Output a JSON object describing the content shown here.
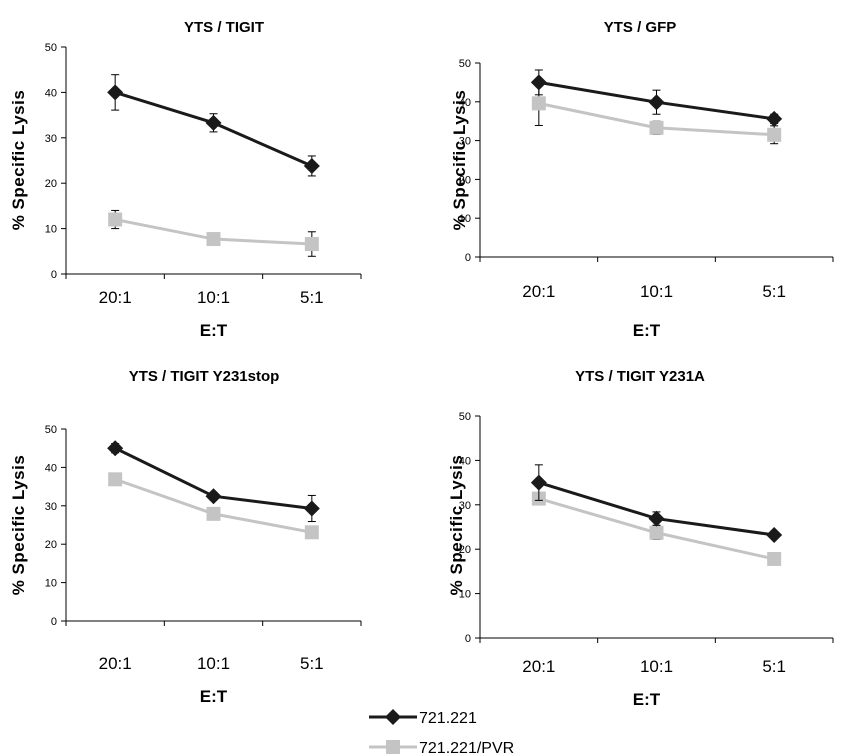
{
  "chart_data": [
    {
      "type": "line",
      "title": "YTS / TIGIT",
      "xlabel": "E:T",
      "ylabel": "% Specific Lysis",
      "categories": [
        "20:1",
        "10:1",
        "5:1"
      ],
      "ylim": [
        0,
        50
      ],
      "yticks": [
        0,
        10,
        20,
        30,
        40,
        50
      ],
      "series": [
        {
          "name": "721.221",
          "values": [
            40,
            33.3,
            23.8
          ],
          "errors": [
            3.9,
            2.0,
            2.2
          ]
        },
        {
          "name": "721.221/PVR",
          "values": [
            12,
            7.7,
            6.6
          ],
          "errors": [
            2.0,
            0.7,
            2.7
          ]
        }
      ]
    },
    {
      "type": "line",
      "title": "YTS / GFP",
      "xlabel": "E:T",
      "ylabel": "% Specific Lysis",
      "categories": [
        "20:1",
        "10:1",
        "5:1"
      ],
      "ylim": [
        0,
        50
      ],
      "yticks": [
        0,
        10,
        20,
        30,
        40,
        50
      ],
      "series": [
        {
          "name": "721.221",
          "values": [
            45,
            39.9,
            35.6
          ],
          "errors": [
            3.2,
            3.1,
            1.2
          ]
        },
        {
          "name": "721.221/PVR",
          "values": [
            39.6,
            33.3,
            31.5
          ],
          "errors": [
            5.7,
            1.7,
            2.3
          ]
        }
      ]
    },
    {
      "type": "line",
      "title": "YTS / TIGIT Y231stop",
      "xlabel": "E:T",
      "ylabel": "% Specific Lysis",
      "categories": [
        "20:1",
        "10:1",
        "5:1"
      ],
      "ylim": [
        0,
        50
      ],
      "yticks": [
        0,
        10,
        20,
        30,
        40,
        50
      ],
      "series": [
        {
          "name": "721.221",
          "values": [
            45,
            32.5,
            29.3
          ],
          "errors": [
            1.2,
            1.0,
            3.4
          ]
        },
        {
          "name": "721.221/PVR",
          "values": [
            36.9,
            27.9,
            23.1
          ],
          "errors": [
            1.0,
            1.0,
            1.0
          ]
        }
      ]
    },
    {
      "type": "line",
      "title": "YTS / TIGIT Y231A",
      "xlabel": "E:T",
      "ylabel": "% Specific Lysis",
      "categories": [
        "20:1",
        "10:1",
        "5:1"
      ],
      "ylim": [
        0,
        50
      ],
      "yticks": [
        0,
        10,
        20,
        30,
        40,
        50
      ],
      "series": [
        {
          "name": "721.221",
          "values": [
            35,
            26.9,
            23.2
          ],
          "errors": [
            4.0,
            1.5,
            0.8
          ]
        },
        {
          "name": "721.221/PVR",
          "values": [
            31.4,
            23.7,
            17.8
          ],
          "errors": [
            1.0,
            1.5,
            1.0
          ]
        }
      ]
    }
  ],
  "legend": {
    "items": [
      {
        "label": "721.221",
        "color": "#1a1a1a",
        "marker": "diamond"
      },
      {
        "label": "721.221/PVR",
        "color": "#c4c4c4",
        "marker": "square"
      }
    ]
  },
  "colors": {
    "series_dark": "#1a1a1a",
    "series_light": "#c4c4c4",
    "axis": "#000000"
  }
}
